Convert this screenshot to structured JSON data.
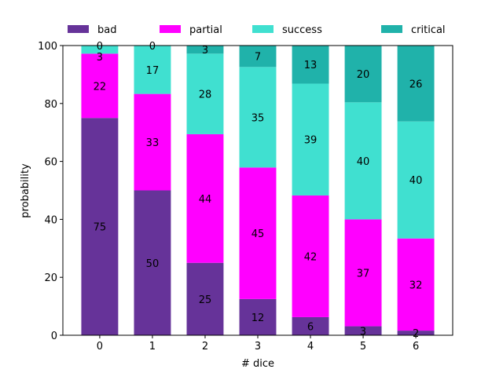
{
  "chart_data": {
    "type": "bar",
    "stacked": true,
    "xlabel": "# dice",
    "ylabel": "probability",
    "ylim": [
      0,
      100
    ],
    "xlim": [
      -0.7,
      6.7
    ],
    "yticks": [
      0,
      20,
      40,
      60,
      80,
      100
    ],
    "categories": [
      "0",
      "1",
      "2",
      "3",
      "4",
      "5",
      "6"
    ],
    "legend_placement": "top",
    "grid": false,
    "series": [
      {
        "name": "bad",
        "color": "#663399",
        "values": [
          75,
          50,
          25,
          12.5,
          6.25,
          3.1,
          1.6
        ],
        "labels": [
          "75",
          "50",
          "25",
          "12",
          "6",
          "3",
          "2"
        ]
      },
      {
        "name": "partial",
        "color": "#ff00ff",
        "values": [
          22.2,
          33.3,
          44.4,
          45.4,
          42.0,
          36.9,
          31.8
        ],
        "labels": [
          "22",
          "33",
          "44",
          "45",
          "42",
          "37",
          "32"
        ]
      },
      {
        "name": "success",
        "color": "#40e0d0",
        "values": [
          2.8,
          16.7,
          27.8,
          34.7,
          38.6,
          40.4,
          40.4
        ],
        "labels": [
          "3",
          "17",
          "28",
          "35",
          "39",
          "40",
          "40"
        ]
      },
      {
        "name": "critical",
        "color": "#20b2aa",
        "values": [
          0,
          0,
          2.8,
          7.4,
          13.2,
          19.6,
          26.2
        ],
        "labels": [
          "0",
          "0",
          "3",
          "7",
          "13",
          "20",
          "26"
        ]
      }
    ]
  }
}
